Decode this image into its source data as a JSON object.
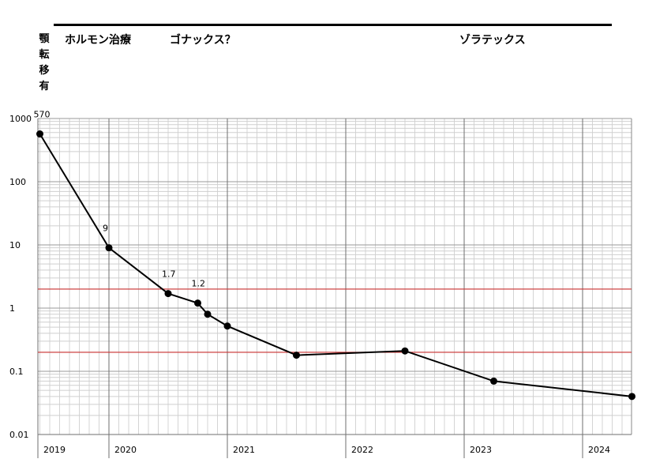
{
  "header": {
    "vertical_label_chars": [
      "顎",
      "転",
      "移",
      "有"
    ],
    "phases": [
      "ホルモン治療",
      "ゴナックス？",
      "ゾラテックス"
    ]
  },
  "chart_data": {
    "type": "line",
    "y_scale": "log",
    "ylim": [
      0.01,
      1000
    ],
    "y_tick_labels": [
      "1000",
      "100",
      "10",
      "1",
      "0.1",
      "0.01"
    ],
    "year_labels": [
      "2019",
      "2020",
      "2021",
      "2022",
      "2023",
      "2024"
    ],
    "x_range": [
      "2019-06",
      "2024-10"
    ],
    "reference_lines": [
      2,
      0.2
    ],
    "reference_color": "#cc3333",
    "line_color": "#000000",
    "series": [
      {
        "points": [
          {
            "x": "2019-06",
            "y": 570
          },
          {
            "x": "2020-01",
            "y": 9
          },
          {
            "x": "2020-07",
            "y": 1.7
          },
          {
            "x": "2020-10",
            "y": 1.2
          },
          {
            "x": "2020-11",
            "y": 0.8
          },
          {
            "x": "2021-01",
            "y": 0.52
          },
          {
            "x": "2021-08",
            "y": 0.18
          },
          {
            "x": "2022-07",
            "y": 0.21
          },
          {
            "x": "2023-04",
            "y": 0.07
          },
          {
            "x": "2024-06",
            "y": 0.04
          }
        ]
      }
    ],
    "data_labels": [
      {
        "x": "2019-06",
        "y": 570,
        "text": "570"
      },
      {
        "x": "2020-01",
        "y": 9,
        "text": "9"
      },
      {
        "x": "2020-07",
        "y": 1.7,
        "text": "1.7"
      },
      {
        "x": "2020-10",
        "y": 1.2,
        "text": "1.2"
      }
    ]
  }
}
